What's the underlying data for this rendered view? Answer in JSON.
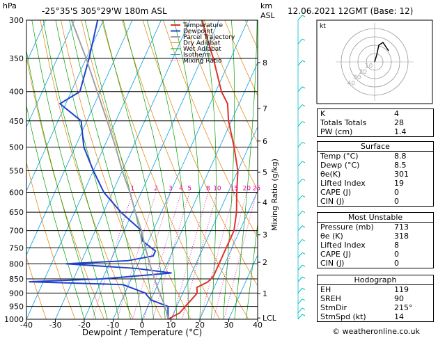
{
  "header": {
    "hpa_label": "hPa",
    "location": "-25°35'S  305°29'W  180m  ASL",
    "km_label": "km",
    "asl_label": "ASL",
    "date": "12.06.2021  12GMT  (Base: 12)"
  },
  "legend": [
    "Temperature",
    "Dewpoint",
    "Parcel Trajectory",
    "Dry Adiabat",
    "Wet Adiabat",
    "Isotherm",
    "Mixing Ratio"
  ],
  "colors": {
    "temperature": "#e03030",
    "dewpoint": "#2040d0",
    "parcel": "#a0a0a0",
    "dry_adiabat": "#e08000",
    "wet_adiabat": "#00a000",
    "isotherm": "#00a0e0",
    "mixing_ratio": "#e000a0",
    "wind": "#00c0c0"
  },
  "x_ticks": [
    -40,
    -30,
    -20,
    -10,
    0,
    10,
    20,
    30,
    40
  ],
  "x_label": "Dewpoint / Temperature (°C)",
  "p_ticks": [
    300,
    350,
    400,
    450,
    500,
    550,
    600,
    650,
    700,
    750,
    800,
    850,
    900,
    950,
    1000
  ],
  "km_ticks": [
    {
      "label": "8",
      "p": 356
    },
    {
      "label": "7",
      "p": 428
    },
    {
      "label": "6",
      "p": 488
    },
    {
      "label": "5",
      "p": 553
    },
    {
      "label": "4",
      "p": 625
    },
    {
      "label": "3",
      "p": 712
    },
    {
      "label": "2",
      "p": 795
    },
    {
      "label": "1",
      "p": 902
    },
    {
      "label": "LCL",
      "p": 995
    }
  ],
  "mixing_ratio_label": "Mixing Ratio (g/kg)",
  "mixing_ratio_values": [
    "1",
    "2",
    "3",
    "4",
    "5",
    "8",
    "10",
    "15",
    "20",
    "25"
  ],
  "chart_data": {
    "type": "line",
    "title": "-25°35'S  305°29'W  180m  ASL",
    "xlabel": "Dewpoint / Temperature (°C)",
    "ylabel": "hPa",
    "xlim": [
      -40,
      40
    ],
    "ylim": [
      1000,
      300
    ],
    "y_scale": "log-pressure",
    "x_skew": "skew-T",
    "series": [
      {
        "name": "Temperature",
        "points": [
          [
            1000,
            9
          ],
          [
            975,
            12
          ],
          [
            950,
            13
          ],
          [
            925,
            14
          ],
          [
            900,
            15
          ],
          [
            880,
            14
          ],
          [
            860,
            17
          ],
          [
            840,
            18
          ],
          [
            800,
            18
          ],
          [
            760,
            18
          ],
          [
            700,
            18
          ],
          [
            650,
            16
          ],
          [
            600,
            13
          ],
          [
            550,
            10
          ],
          [
            500,
            5
          ],
          [
            450,
            -1
          ],
          [
            420,
            -4
          ],
          [
            400,
            -8
          ],
          [
            350,
            -16
          ],
          [
            300,
            -26
          ]
        ]
      },
      {
        "name": "Dewpoint",
        "points": [
          [
            1000,
            9
          ],
          [
            975,
            8
          ],
          [
            950,
            7
          ],
          [
            925,
            0
          ],
          [
            900,
            -3
          ],
          [
            870,
            -12
          ],
          [
            860,
            -45
          ],
          [
            850,
            -20
          ],
          [
            830,
            3
          ],
          [
            815,
            -10
          ],
          [
            800,
            -35
          ],
          [
            790,
            -14
          ],
          [
            775,
            -6
          ],
          [
            760,
            -6
          ],
          [
            730,
            -12
          ],
          [
            700,
            -14
          ],
          [
            650,
            -24
          ],
          [
            600,
            -33
          ],
          [
            550,
            -40
          ],
          [
            500,
            -47
          ],
          [
            450,
            -52
          ],
          [
            420,
            -62
          ],
          [
            400,
            -57
          ],
          [
            350,
            -59
          ],
          [
            300,
            -62
          ]
        ]
      },
      {
        "name": "Parcel Trajectory",
        "points": [
          [
            1000,
            9
          ],
          [
            950,
            6
          ],
          [
            900,
            2
          ],
          [
            850,
            -2
          ],
          [
            800,
            -6
          ],
          [
            750,
            -10
          ],
          [
            700,
            -14
          ],
          [
            650,
            -19
          ],
          [
            600,
            -24
          ],
          [
            550,
            -30
          ],
          [
            500,
            -36
          ],
          [
            450,
            -43
          ],
          [
            400,
            -51
          ],
          [
            350,
            -60
          ],
          [
            300,
            -71
          ]
        ]
      }
    ]
  },
  "hodograph": {
    "label": "kt",
    "rings": [
      "10",
      "20",
      "30",
      "40"
    ]
  },
  "indices": [
    {
      "label": "K",
      "value": "4"
    },
    {
      "label": "Totals Totals",
      "value": "28"
    },
    {
      "label": "PW (cm)",
      "value": "1.4"
    }
  ],
  "surface": {
    "title": "Surface",
    "rows": [
      {
        "label": "Temp (°C)",
        "value": "8.8"
      },
      {
        "label": "Dewp (°C)",
        "value": "8.5"
      },
      {
        "label": "θe(K)",
        "value": "301"
      },
      {
        "label": "Lifted Index",
        "value": "19"
      },
      {
        "label": "CAPE (J)",
        "value": "0"
      },
      {
        "label": "CIN (J)",
        "value": "0"
      }
    ]
  },
  "most_unstable": {
    "title": "Most Unstable",
    "rows": [
      {
        "label": "Pressure (mb)",
        "value": "713"
      },
      {
        "label": "θe (K)",
        "value": "318"
      },
      {
        "label": "Lifted Index",
        "value": "8"
      },
      {
        "label": "CAPE (J)",
        "value": "0"
      },
      {
        "label": "CIN (J)",
        "value": "0"
      }
    ]
  },
  "hodograph_table": {
    "title": "Hodograph",
    "rows": [
      {
        "label": "EH",
        "value": "119"
      },
      {
        "label": "SREH",
        "value": "90"
      },
      {
        "label": "StmDir",
        "value": "215°"
      },
      {
        "label": "StmSpd (kt)",
        "value": "14"
      }
    ]
  },
  "footer": "© weatheronline.co.uk"
}
